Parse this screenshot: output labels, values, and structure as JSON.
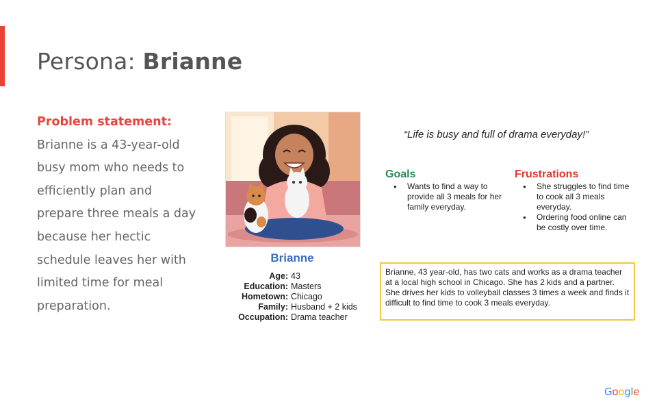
{
  "title": {
    "prefix": "Persona: ",
    "name": "Brianne"
  },
  "problem": {
    "label": "Problem statement:",
    "text": "Brianne is a 43-year-old busy mom who needs to efficiently plan and prepare three meals a day because her hectic schedule leaves her with limited time for meal preparation."
  },
  "persona": {
    "name": "Brianne",
    "details": [
      {
        "key": "Age:",
        "value": "43"
      },
      {
        "key": "Education:",
        "value": "Masters"
      },
      {
        "key": "Hometown:",
        "value": "Chicago"
      },
      {
        "key": "Family:",
        "value": "Husband + 2 kids"
      },
      {
        "key": "Occupation:",
        "value": "Drama teacher"
      }
    ]
  },
  "quote": "“Life is busy and full of drama everyday!”",
  "goals": {
    "heading": "Goals",
    "items": [
      "Wants to find a way to provide all 3 meals for her family everyday."
    ]
  },
  "frustrations": {
    "heading": "Frustrations",
    "items": [
      "She struggles to find time to cook all 3 meals everyday.",
      "Ordering food online can be costly over time."
    ]
  },
  "bio": "Brianne, 43 year-old, has two cats and works as a drama teacher at a local high school in Chicago. She has 2 kids and a partner. She drives her kids to volleyball classes 3 times a week and finds it difficult to find time to cook 3 meals everyday.",
  "logo": {
    "letters": [
      "G",
      "o",
      "o",
      "g",
      "l",
      "e"
    ],
    "colors": [
      "#4285f4",
      "#ea4335",
      "#fbbc05",
      "#4285f4",
      "#34a853",
      "#ea4335"
    ]
  },
  "colors": {
    "accent": "#ea4335",
    "goals": "#2e8b57",
    "frustrations": "#d93b2b",
    "name": "#3b6cc4",
    "bio_border": "#f4c542"
  }
}
